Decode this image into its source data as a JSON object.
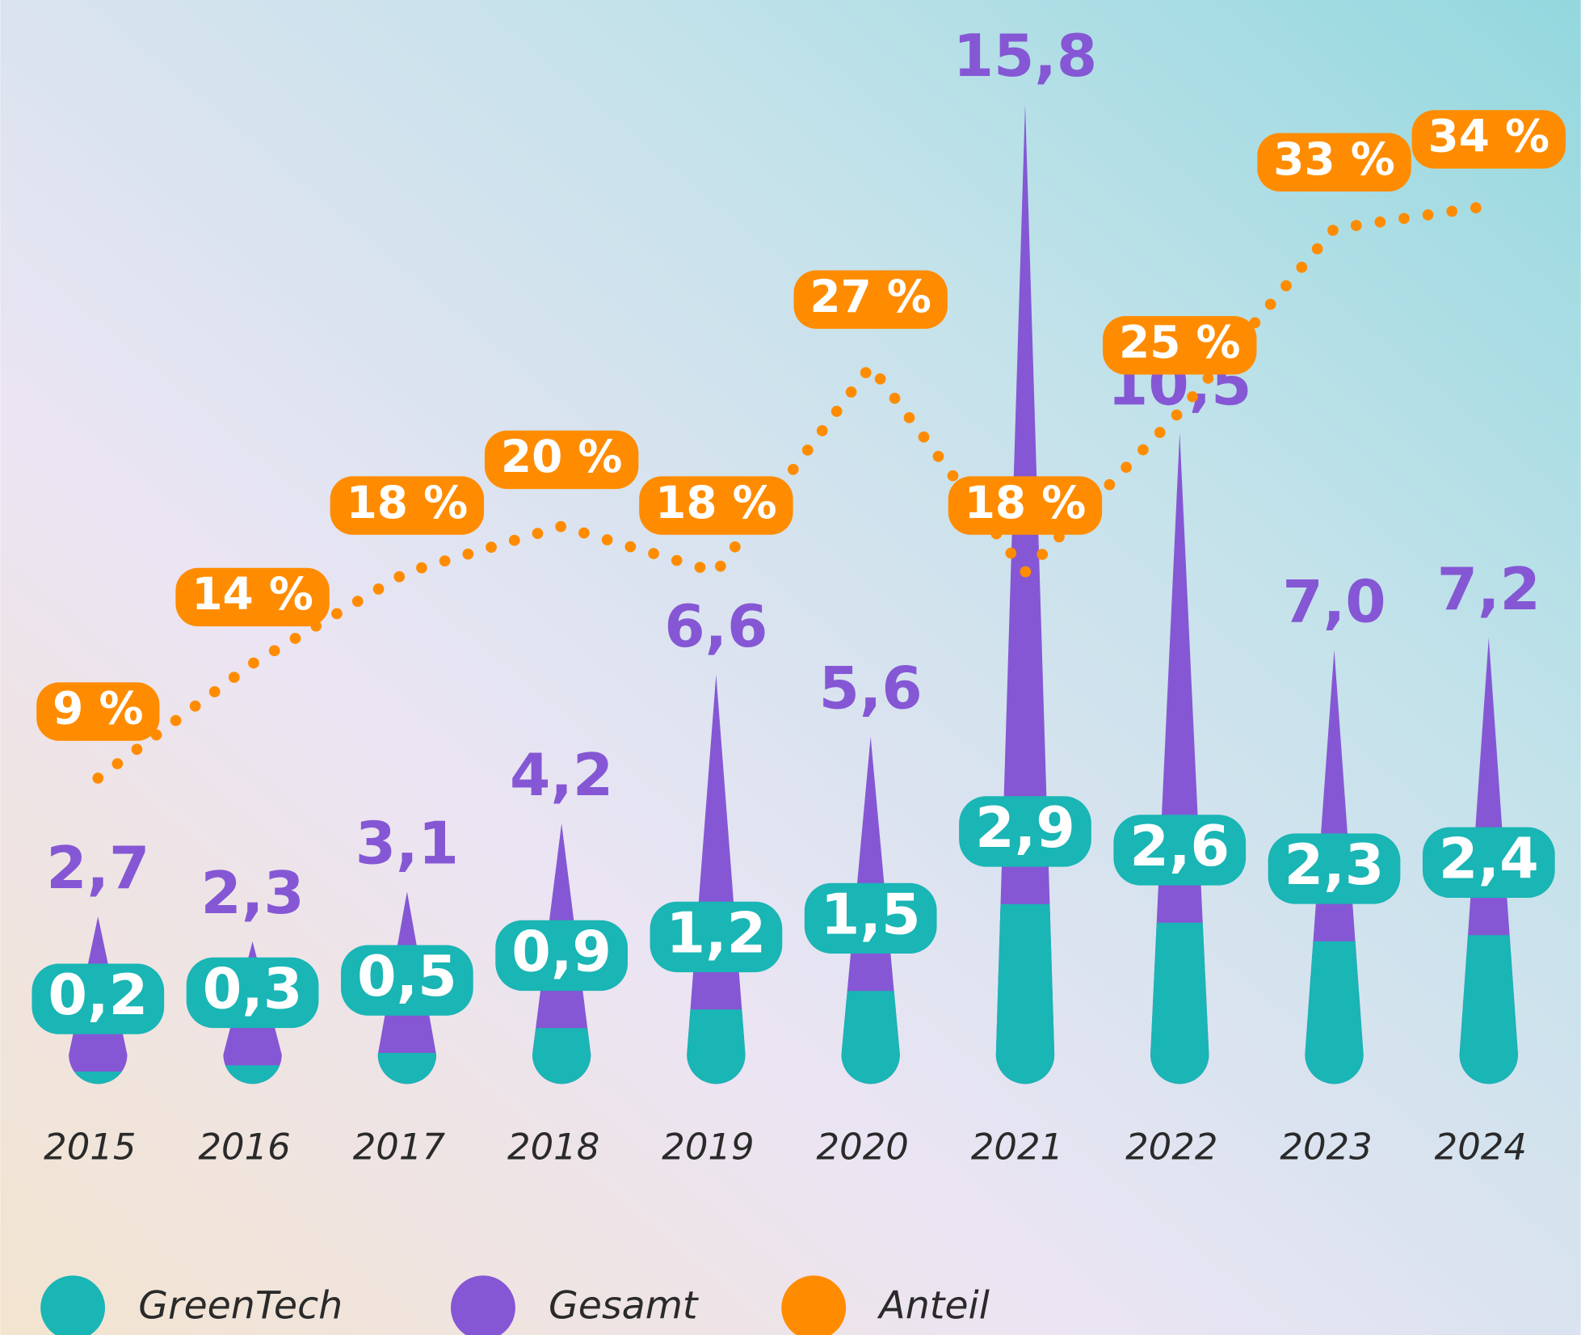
{
  "chart_data": {
    "type": "spike",
    "categories": [
      "2015",
      "2016",
      "2017",
      "2018",
      "2019",
      "2020",
      "2021",
      "2022",
      "2023",
      "2024"
    ],
    "series": [
      {
        "name": "GreenTech",
        "color": "#1ab5b5",
        "values": [
          0.2,
          0.3,
          0.5,
          0.9,
          1.2,
          1.5,
          2.9,
          2.6,
          2.3,
          2.4
        ],
        "value_labels": [
          "0,2",
          "0,3",
          "0,5",
          "0,9",
          "1,2",
          "1,5",
          "2,9",
          "2,6",
          "2,3",
          "2,4"
        ]
      },
      {
        "name": "Gesamt",
        "color": "#8557d4",
        "values": [
          2.7,
          2.3,
          3.1,
          4.2,
          6.6,
          5.6,
          15.8,
          10.5,
          7.0,
          7.2
        ],
        "value_labels": [
          "2,7",
          "2,3",
          "3,1",
          "4,2",
          "6,6",
          "5,6",
          "15,8",
          "10,5",
          "7,0",
          "7,2"
        ]
      },
      {
        "name": "Anteil",
        "color": "#ff8c00",
        "values": [
          9,
          14,
          18,
          20,
          18,
          27,
          18,
          25,
          33,
          34
        ],
        "value_labels": [
          "9 %",
          "14 %",
          "18 %",
          "20 %",
          "18 %",
          "27 %",
          "18 %",
          "25 %",
          "33 %",
          "34 %"
        ]
      }
    ]
  }
}
